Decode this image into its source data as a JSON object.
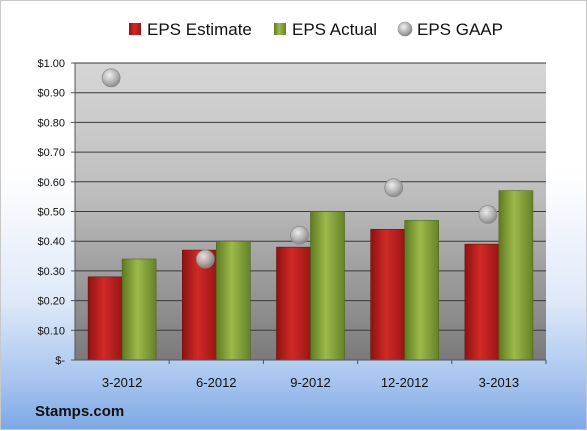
{
  "chart_data": {
    "type": "bar",
    "categories": [
      "3-2012",
      "6-2012",
      "9-2012",
      "12-2012",
      "3-2013"
    ],
    "series": [
      {
        "name": "EPS Estimate",
        "type": "bar",
        "values": [
          0.28,
          0.37,
          0.38,
          0.44,
          0.39
        ]
      },
      {
        "name": "EPS Actual",
        "type": "bar",
        "values": [
          0.34,
          0.4,
          0.5,
          0.47,
          0.57
        ]
      },
      {
        "name": "EPS GAAP",
        "type": "scatter",
        "values": [
          0.95,
          0.34,
          0.42,
          0.58,
          0.49
        ]
      }
    ],
    "ylim": [
      0,
      1.0
    ],
    "yticks": [
      0,
      0.1,
      0.2,
      0.3,
      0.4,
      0.5,
      0.6,
      0.7,
      0.8,
      0.9,
      1.0
    ],
    "ytick_labels": [
      "$-",
      "$0.10",
      "$0.20",
      "$0.30",
      "$0.40",
      "$0.50",
      "$0.60",
      "$0.70",
      "$0.80",
      "$0.90",
      "$1.00"
    ],
    "legend_position": "top",
    "grid": true,
    "colors": {
      "estimate": "#c0201e",
      "actual": "#8aa83a",
      "gaap": "#b8b8b8"
    }
  },
  "footer": {
    "label": "Stamps.com"
  }
}
